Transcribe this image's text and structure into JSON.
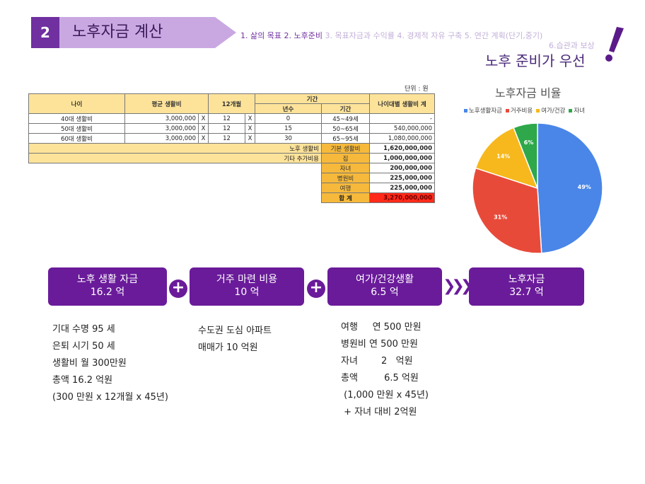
{
  "header": {
    "number": "2",
    "title": "노후자금 계산",
    "nav": [
      {
        "label": "1. 삶의 목표",
        "state": "done"
      },
      {
        "label": "2. 노후준비",
        "state": "done"
      },
      {
        "label": "3. 목표자금과 수익률",
        "state": "pending"
      },
      {
        "label": "4. 경제적 자유 구축",
        "state": "pending"
      },
      {
        "label": "5. 연간 계획(단기,중기)",
        "state": "pending"
      }
    ],
    "nav_line2": "6.습관과 보상",
    "headline": "노후 준비가 우선",
    "accent_color": "#7030a0"
  },
  "table": {
    "unit": "단위 : 원",
    "headers": {
      "age": "나이",
      "avg": "평균 생활비",
      "months": "12개월",
      "period": "기간",
      "years": "년수",
      "range": "기간",
      "total": "나이대별 생활비 계"
    },
    "rows": [
      {
        "age": "40대 생활비",
        "avg": "3,000,000",
        "x1": "X",
        "months": "12",
        "x2": "X",
        "years": "0",
        "range": "45~49세",
        "total": "-"
      },
      {
        "age": "50대 생활비",
        "avg": "3,000,000",
        "x1": "X",
        "months": "12",
        "x2": "X",
        "years": "15",
        "range": "50~65세",
        "total": "540,000,000"
      },
      {
        "age": "60대 생활비",
        "avg": "3,000,000",
        "x1": "X",
        "months": "12",
        "x2": "X",
        "years": "30",
        "range": "65~95세",
        "total": "1,080,000,000"
      }
    ],
    "labels": {
      "retire": "노후 생활비",
      "other": "기타 추가비용"
    },
    "summary": [
      {
        "label": "기본 생활비",
        "value": "1,620,000,000"
      },
      {
        "label": "집",
        "value": "1,000,000,000"
      },
      {
        "label": "자녀",
        "value": "200,000,000"
      },
      {
        "label": "병원비",
        "value": "225,000,000"
      },
      {
        "label": "여행",
        "value": "225,000,000"
      }
    ],
    "total": {
      "label": "합 계",
      "value": "3,270,000,000"
    }
  },
  "chart_data": {
    "type": "pie",
    "title": "노후자금 비율",
    "legend_position": "top",
    "categories": [
      "노후생활자금",
      "거주비용",
      "여가/건강",
      "자녀"
    ],
    "values": [
      49,
      31,
      14,
      6
    ],
    "labels": [
      "49%",
      "31%",
      "14%",
      "6%"
    ],
    "colors": [
      "#4a86e8",
      "#e84a3a",
      "#f6b81c",
      "#2ea84a"
    ]
  },
  "boxes": [
    {
      "line1": "노후 생활 자금",
      "line2": "16.2 억"
    },
    {
      "line1": "거주 마련 비용",
      "line2": "10 억"
    },
    {
      "line1": "여가/건강생활",
      "line2": "6.5 억"
    },
    {
      "line1": "노후자금",
      "line2": "32.7 억"
    }
  ],
  "plus_symbol": "+",
  "arrows_symbol": "❯❯❯",
  "details": {
    "col1": [
      "기대 수명 95 세",
      "은퇴 시기 50 세",
      "생활비 월 300만원",
      "총액 16.2 억원",
      "(300 만원 x 12개월 x 45년)"
    ],
    "col2": [
      "수도권 도심 아파트",
      "매매가 10 억원"
    ],
    "col3": [
      "여행     연 500 만원",
      "병원비 연 500 만원",
      "자녀        2   억원",
      "총액         6.5 억원",
      " (1,000 만원 x 45년)",
      " + 자녀 대비 2억원"
    ]
  }
}
